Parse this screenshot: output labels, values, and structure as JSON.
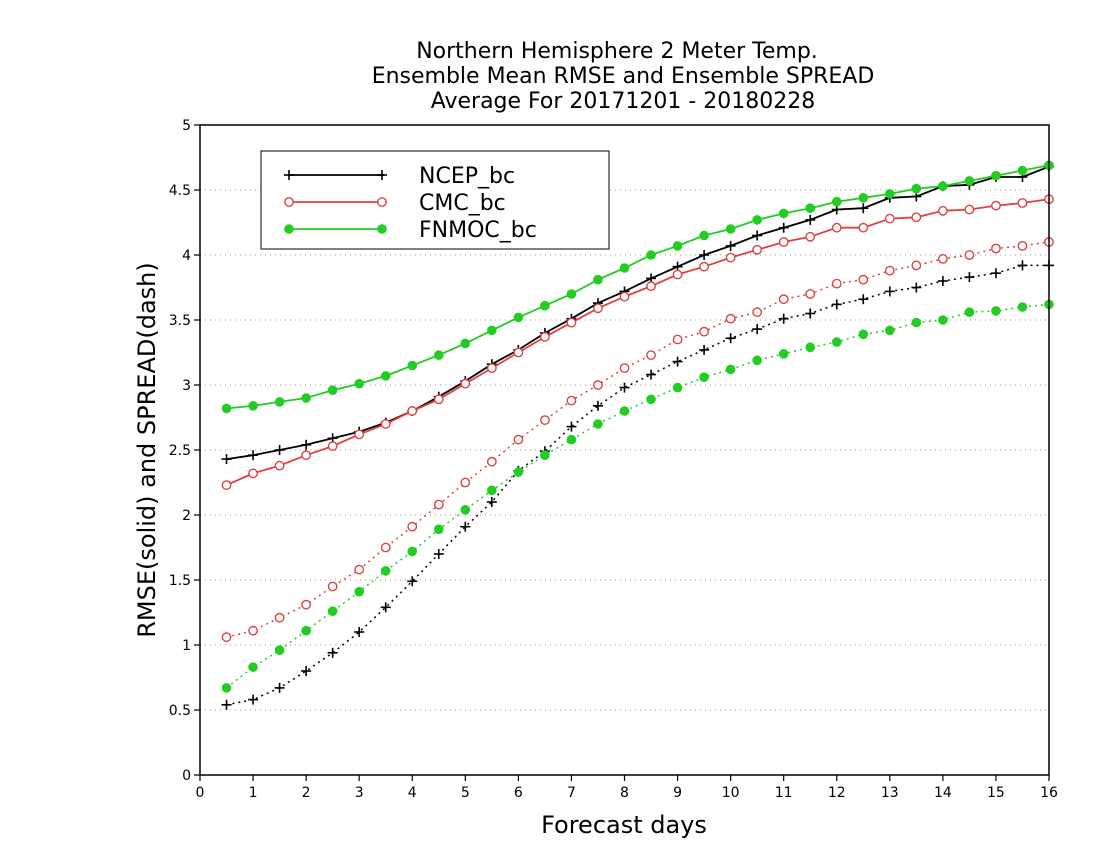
{
  "chart_data": {
    "type": "line",
    "title_lines": [
      "Northern Hemisphere 2 Meter Temp.",
      "Ensemble Mean RMSE and Ensemble SPREAD",
      "Average For 20171201 - 20180228"
    ],
    "xlabel": "Forecast days",
    "ylabel": "RMSE(solid) and SPREAD(dash)",
    "xlim": [
      0,
      16
    ],
    "ylim": [
      0,
      5
    ],
    "xticks": [
      "0",
      "1",
      "2",
      "3",
      "4",
      "5",
      "6",
      "7",
      "8",
      "9",
      "10",
      "11",
      "12",
      "13",
      "14",
      "15",
      "16"
    ],
    "yticks": [
      "0",
      "0.5",
      "1",
      "1.5",
      "2",
      "2.5",
      "3",
      "3.5",
      "4",
      "4.5",
      "5"
    ],
    "grid": "horizontal-dotted",
    "legend_position": "top-left",
    "x": [
      0.5,
      1,
      1.5,
      2,
      2.5,
      3,
      3.5,
      4,
      4.5,
      5,
      5.5,
      6,
      6.5,
      7,
      7.5,
      8,
      8.5,
      9,
      9.5,
      10,
      10.5,
      11,
      11.5,
      12,
      12.5,
      13,
      13.5,
      14,
      14.5,
      15,
      15.5,
      16
    ],
    "series": [
      {
        "name": "NCEP_bc",
        "color": "#000000",
        "marker": "plus",
        "rmse": [
          2.43,
          2.46,
          2.5,
          2.54,
          2.59,
          2.64,
          2.71,
          2.8,
          2.91,
          3.03,
          3.16,
          3.27,
          3.4,
          3.51,
          3.63,
          3.72,
          3.82,
          3.91,
          4.0,
          4.07,
          4.15,
          4.21,
          4.27,
          4.35,
          4.36,
          4.44,
          4.45,
          4.53,
          4.54,
          4.6,
          4.6,
          4.68
        ],
        "spread": [
          0.54,
          0.58,
          0.67,
          0.8,
          0.94,
          1.1,
          1.29,
          1.49,
          1.7,
          1.91,
          2.1,
          2.34,
          2.49,
          2.68,
          2.84,
          2.98,
          3.08,
          3.18,
          3.27,
          3.36,
          3.43,
          3.51,
          3.55,
          3.62,
          3.66,
          3.72,
          3.75,
          3.8,
          3.83,
          3.86,
          3.92,
          3.92
        ]
      },
      {
        "name": "CMC_bc",
        "color": "#e04040",
        "marker": "open-circle",
        "rmse": [
          2.23,
          2.32,
          2.38,
          2.46,
          2.53,
          2.62,
          2.7,
          2.8,
          2.89,
          3.01,
          3.13,
          3.25,
          3.37,
          3.48,
          3.59,
          3.68,
          3.76,
          3.85,
          3.91,
          3.98,
          4.04,
          4.1,
          4.14,
          4.21,
          4.21,
          4.28,
          4.29,
          4.34,
          4.35,
          4.38,
          4.4,
          4.43
        ],
        "spread": [
          1.06,
          1.11,
          1.21,
          1.31,
          1.45,
          1.58,
          1.75,
          1.91,
          2.08,
          2.25,
          2.41,
          2.58,
          2.73,
          2.88,
          3.0,
          3.13,
          3.23,
          3.35,
          3.41,
          3.51,
          3.56,
          3.66,
          3.7,
          3.78,
          3.81,
          3.88,
          3.92,
          3.97,
          4.0,
          4.05,
          4.07,
          4.1
        ]
      },
      {
        "name": "FNMOC_bc",
        "color": "#22cc22",
        "marker": "filled-circle",
        "rmse": [
          2.82,
          2.84,
          2.87,
          2.9,
          2.96,
          3.01,
          3.07,
          3.15,
          3.23,
          3.32,
          3.42,
          3.52,
          3.61,
          3.7,
          3.81,
          3.9,
          4.0,
          4.07,
          4.15,
          4.2,
          4.27,
          4.32,
          4.36,
          4.41,
          4.44,
          4.47,
          4.51,
          4.53,
          4.57,
          4.61,
          4.65,
          4.69
        ],
        "spread": [
          0.67,
          0.83,
          0.96,
          1.11,
          1.26,
          1.41,
          1.57,
          1.72,
          1.89,
          2.04,
          2.19,
          2.33,
          2.46,
          2.58,
          2.7,
          2.8,
          2.89,
          2.98,
          3.06,
          3.12,
          3.19,
          3.24,
          3.29,
          3.33,
          3.39,
          3.42,
          3.48,
          3.5,
          3.56,
          3.57,
          3.6,
          3.62
        ]
      }
    ]
  }
}
